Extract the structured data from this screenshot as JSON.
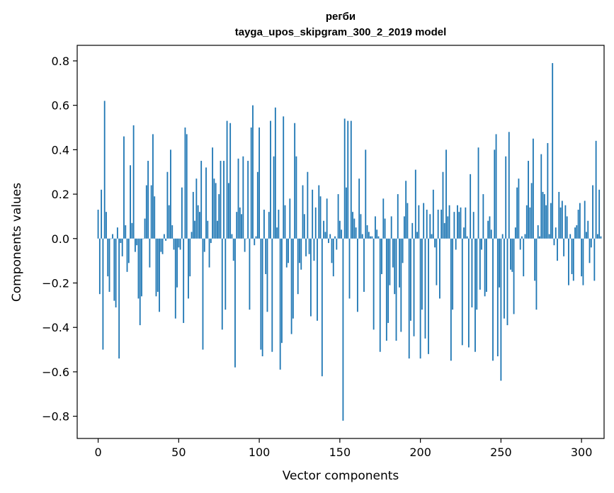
{
  "chart_data": {
    "type": "bar",
    "title": "регби",
    "subtitle": "tayga_upos_skipgram_300_2_2019 model",
    "xlabel": "Vector components",
    "ylabel": "Components values",
    "xlim": [
      -13,
      314
    ],
    "ylim": [
      -0.9,
      0.87
    ],
    "xticks": [
      0,
      50,
      100,
      150,
      200,
      250,
      300
    ],
    "xtick_labels": [
      "0",
      "50",
      "100",
      "150",
      "200",
      "250",
      "300"
    ],
    "yticks": [
      -0.8,
      -0.6,
      -0.4,
      -0.2,
      0.0,
      0.2,
      0.4,
      0.6,
      0.8
    ],
    "ytick_labels": [
      "−0.8",
      "−0.6",
      "−0.4",
      "−0.2",
      "0.0",
      "0.2",
      "0.4",
      "0.6",
      "0.8"
    ],
    "bar_color": "#1f77b4",
    "grid": false,
    "values": [
      0.13,
      -0.25,
      0.22,
      -0.5,
      0.62,
      0.12,
      -0.17,
      -0.24,
      0.0,
      0.02,
      -0.28,
      -0.31,
      0.05,
      -0.54,
      -0.02,
      -0.08,
      0.46,
      0.06,
      -0.15,
      -0.11,
      0.33,
      0.07,
      0.51,
      -0.06,
      -0.03,
      -0.27,
      -0.39,
      -0.26,
      0.0,
      0.09,
      0.24,
      0.35,
      -0.13,
      0.24,
      0.47,
      0.19,
      -0.26,
      -0.24,
      -0.33,
      -0.06,
      -0.07,
      0.02,
      -0.01,
      0.3,
      0.15,
      0.4,
      0.06,
      -0.05,
      -0.36,
      -0.22,
      -0.04,
      -0.05,
      0.23,
      -0.38,
      0.5,
      0.47,
      -0.27,
      -0.17,
      0.03,
      0.21,
      0.08,
      0.27,
      0.15,
      0.12,
      0.35,
      -0.5,
      -0.06,
      0.32,
      0.08,
      -0.13,
      -0.02,
      0.41,
      0.27,
      0.25,
      0.08,
      0.2,
      0.35,
      -0.41,
      0.35,
      -0.32,
      0.53,
      0.25,
      0.52,
      0.02,
      -0.1,
      -0.58,
      0.12,
      0.36,
      0.14,
      0.11,
      0.37,
      -0.06,
      0.0,
      0.35,
      -0.32,
      0.5,
      0.6,
      -0.03,
      0.01,
      0.3,
      0.5,
      -0.5,
      -0.53,
      0.13,
      -0.16,
      -0.33,
      0.12,
      0.53,
      -0.51,
      0.37,
      0.59,
      0.05,
      0.13,
      -0.59,
      -0.47,
      0.55,
      0.15,
      -0.13,
      -0.11,
      0.18,
      -0.43,
      -0.36,
      0.52,
      0.37,
      -0.25,
      -0.11,
      -0.14,
      0.24,
      0.11,
      -0.08,
      0.3,
      -0.07,
      -0.35,
      0.22,
      -0.1,
      0.14,
      -0.37,
      0.24,
      0.19,
      -0.62,
      0.08,
      0.03,
      0.18,
      -0.02,
      0.02,
      -0.11,
      -0.17,
      0.01,
      -0.05,
      0.2,
      0.08,
      0.04,
      -0.82,
      0.54,
      0.23,
      0.53,
      -0.27,
      0.53,
      0.12,
      0.09,
      0.05,
      -0.33,
      0.27,
      0.11,
      0.02,
      -0.24,
      0.4,
      0.06,
      0.03,
      0.01,
      0.01,
      -0.41,
      0.1,
      0.04,
      0.01,
      -0.51,
      -0.16,
      0.18,
      0.09,
      -0.46,
      -0.38,
      -0.21,
      0.1,
      -0.13,
      -0.25,
      -0.46,
      0.2,
      -0.22,
      -0.42,
      -0.11,
      0.1,
      0.26,
      0.16,
      -0.54,
      -0.37,
      0.07,
      -0.44,
      0.31,
      0.03,
      0.15,
      -0.54,
      -0.32,
      0.16,
      -0.45,
      0.13,
      -0.52,
      0.11,
      0.02,
      0.22,
      -0.04,
      -0.21,
      0.13,
      -0.27,
      0.13,
      0.3,
      0.07,
      0.4,
      0.1,
      0.15,
      -0.55,
      -0.32,
      0.12,
      -0.05,
      0.15,
      0.12,
      0.14,
      -0.48,
      0.05,
      0.14,
      0.01,
      -0.49,
      0.29,
      -0.31,
      0.12,
      -0.51,
      -0.32,
      0.41,
      -0.23,
      -0.05,
      0.2,
      -0.26,
      -0.24,
      0.08,
      0.1,
      0.04,
      -0.55,
      0.4,
      0.47,
      -0.53,
      -0.22,
      -0.64,
      0.02,
      -0.36,
      0.37,
      -0.39,
      0.48,
      -0.14,
      -0.15,
      -0.34,
      0.05,
      0.23,
      0.27,
      -0.05,
      0.01,
      -0.17,
      0.02,
      0.15,
      0.35,
      0.14,
      0.25,
      0.45,
      -0.19,
      -0.32,
      0.06,
      0.01,
      0.38,
      0.21,
      0.2,
      0.15,
      0.43,
      0.02,
      0.16,
      0.79,
      -0.03,
      0.05,
      -0.1,
      0.21,
      0.14,
      0.17,
      -0.08,
      0.15,
      0.1,
      -0.21,
      0.02,
      -0.16,
      -0.19,
      0.05,
      0.06,
      0.13,
      0.16,
      -0.17,
      -0.21,
      0.17,
      0.03,
      0.08,
      -0.11,
      -0.04,
      0.24,
      -0.19,
      0.44,
      0.02,
      0.22,
      0.01
    ]
  }
}
